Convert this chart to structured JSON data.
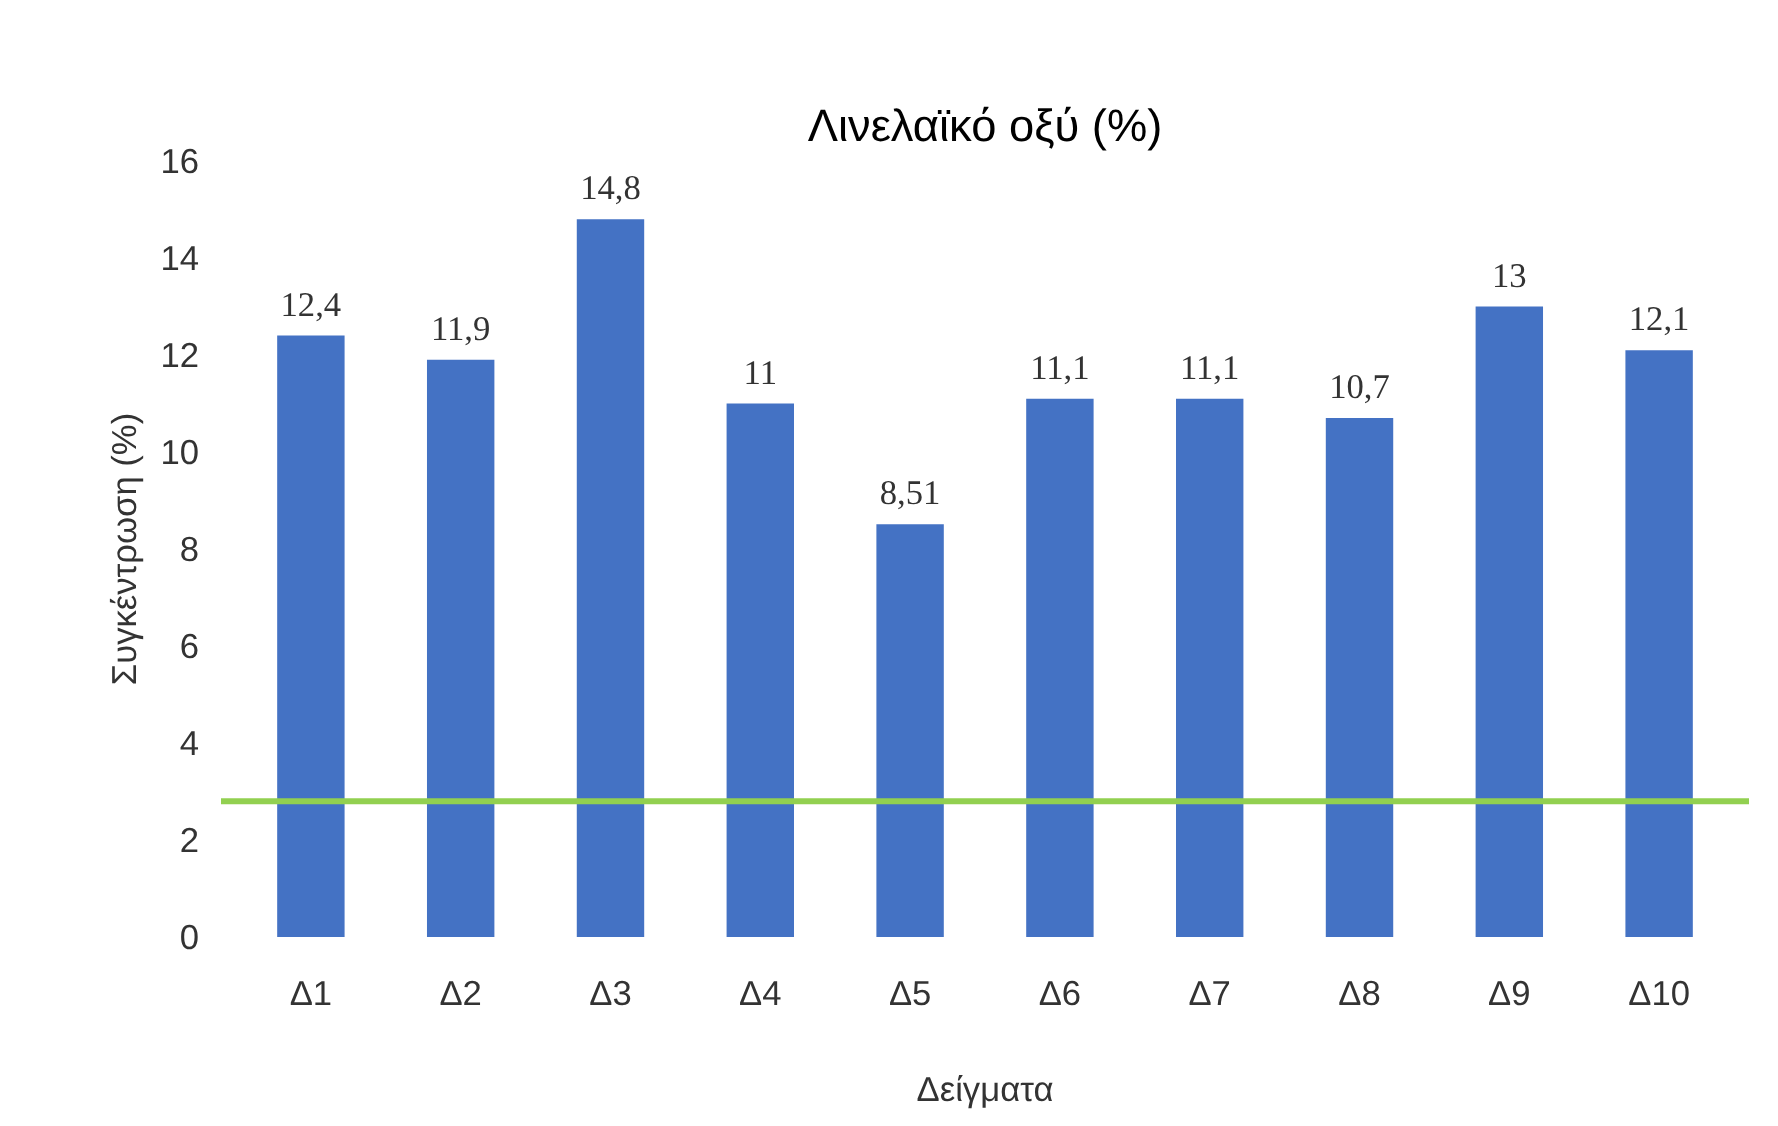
{
  "chart_data": {
    "type": "bar",
    "title": "Λινελαϊκό οξύ (%)",
    "xlabel": "Δείγματα",
    "ylabel": "Συγκέντρωση (%)",
    "categories": [
      "Δ1",
      "Δ2",
      "Δ3",
      "Δ4",
      "Δ5",
      "Δ6",
      "Δ7",
      "Δ8",
      "Δ9",
      "Δ10"
    ],
    "values": [
      12.4,
      11.9,
      14.8,
      11,
      8.51,
      11.1,
      11.1,
      10.7,
      13,
      12.1
    ],
    "value_labels": [
      "12,4",
      "11,9",
      "14,8",
      "11",
      "8,51",
      "11,1",
      "11,1",
      "10,7",
      "13",
      "12,1"
    ],
    "color": "#4472c4",
    "ylim": [
      0,
      16
    ],
    "yticks": [
      0,
      2,
      4,
      6,
      8,
      10,
      12,
      14,
      16
    ],
    "grid": false,
    "ref_lines": [
      {
        "axis": "y",
        "value": 2.8,
        "color": "#92d050"
      }
    ]
  }
}
